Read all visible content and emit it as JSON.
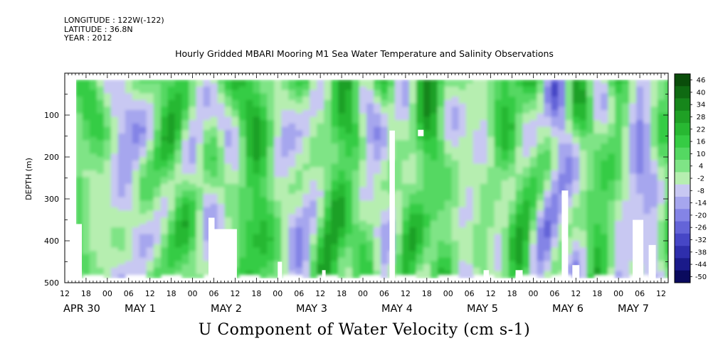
{
  "header": {
    "longitude": "LONGITUDE : 122W(-122)",
    "latitude": "LATITUDE : 36.8N",
    "year": "YEAR : 2012",
    "title": "Hourly Gridded MBARI Mooring M1 Sea Water Temperature and Salinity Observations"
  },
  "caption": "U Component of Water Velocity (cm s-1)",
  "chart_data": {
    "type": "heatmap",
    "title": "Hourly Gridded MBARI Mooring M1 Sea Water Temperature and Salinity Observations",
    "xlabel": "",
    "ylabel": "DEPTH (m)",
    "variable": "U Component of Water Velocity (cm s-1)",
    "ylim": [
      500,
      0
    ],
    "y_reversed": true,
    "yticks": [
      100,
      200,
      300,
      400,
      500
    ],
    "xlim": [
      "2012-04-30 12:00",
      "2012-05-07 14:00"
    ],
    "x_tick_labels": [
      "12",
      "18",
      "00",
      "06",
      "12",
      "18",
      "00",
      "06",
      "12",
      "18",
      "00",
      "06",
      "12",
      "18",
      "00",
      "06",
      "12",
      "18",
      "00",
      "06",
      "12",
      "18",
      "00",
      "06",
      "12",
      "18",
      "00",
      "06",
      "12"
    ],
    "day_labels": [
      "APR 30",
      "MAY  1",
      "MAY  2",
      "MAY  3",
      "MAY  4",
      "MAY  5",
      "MAY  6",
      "MAY  7"
    ],
    "colorbar": {
      "labels": [
        "46",
        "40",
        "34",
        "28",
        "22",
        "16",
        "10",
        "4",
        "-2",
        "-8",
        "-14",
        "-20",
        "-26",
        "-32",
        "-38",
        "-44",
        "-50"
      ],
      "colors": [
        "#0a4d0a",
        "#0f6a12",
        "#16861b",
        "#1fa025",
        "#28b832",
        "#36cc44",
        "#54d862",
        "#7fe486",
        "#b6eeb0",
        "#c8c8f2",
        "#a6a6ee",
        "#8484e6",
        "#6464d8",
        "#4646c6",
        "#2e2eac",
        "#1a1a8a",
        "#0a0a5e"
      ]
    },
    "data_start": "2012-04-30 15:00",
    "depth_range_observed": [
      20,
      488
    ],
    "legend": "colorbar-right"
  }
}
